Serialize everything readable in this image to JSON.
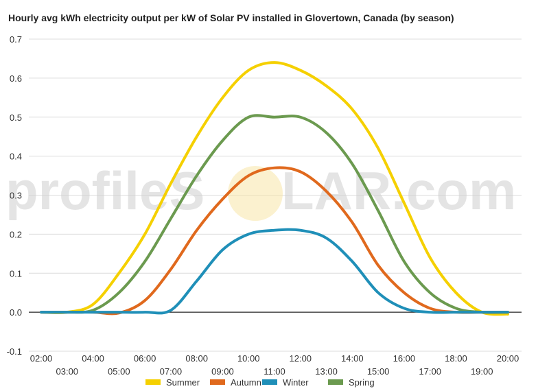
{
  "chart_data": {
    "type": "line",
    "title": "Hourly avg kWh electricity output per kW of Solar PV installed in Glovertown, Canada (by season)",
    "xlabel": "",
    "ylabel": "",
    "ylim": [
      -0.1,
      0.7
    ],
    "yticks": [
      "-0.1",
      "0.0",
      "0.1",
      "0.2",
      "0.3",
      "0.4",
      "0.5",
      "0.6",
      "0.7"
    ],
    "grid": true,
    "legend_position": "bottom",
    "categories": [
      "02:00",
      "03:00",
      "04:00",
      "05:00",
      "06:00",
      "07:00",
      "08:00",
      "09:00",
      "10:00",
      "11:00",
      "12:00",
      "13:00",
      "14:00",
      "15:00",
      "16:00",
      "17:00",
      "18:00",
      "19:00",
      "20:00"
    ],
    "series": [
      {
        "name": "Summer",
        "color": "#f5d000",
        "values": [
          0.0,
          0.0,
          0.02,
          0.1,
          0.2,
          0.33,
          0.45,
          0.55,
          0.62,
          0.64,
          0.62,
          0.58,
          0.52,
          0.42,
          0.28,
          0.14,
          0.05,
          0.0,
          -0.005
        ]
      },
      {
        "name": "Autumn",
        "color": "#e0691d",
        "values": [
          0.0,
          0.0,
          0.0,
          -0.002,
          0.03,
          0.11,
          0.21,
          0.29,
          0.35,
          0.37,
          0.36,
          0.31,
          0.23,
          0.12,
          0.05,
          0.01,
          0.0,
          0.0,
          0.0
        ]
      },
      {
        "name": "Winter",
        "color": "#1f8fb8",
        "values": [
          0.0,
          0.0,
          0.0,
          0.0,
          0.0,
          0.005,
          0.08,
          0.16,
          0.2,
          0.21,
          0.21,
          0.19,
          0.13,
          0.05,
          0.01,
          0.0,
          0.0,
          0.0,
          0.0
        ]
      },
      {
        "name": "Spring",
        "color": "#6b9a4f",
        "values": [
          0.0,
          0.0,
          0.005,
          0.05,
          0.13,
          0.24,
          0.35,
          0.44,
          0.5,
          0.5,
          0.5,
          0.46,
          0.38,
          0.26,
          0.13,
          0.05,
          0.01,
          0.0,
          0.0
        ]
      }
    ]
  },
  "watermark": {
    "text_left": "profileS",
    "text_right": "LAR.com",
    "sun_color": "#f7e3a0"
  }
}
